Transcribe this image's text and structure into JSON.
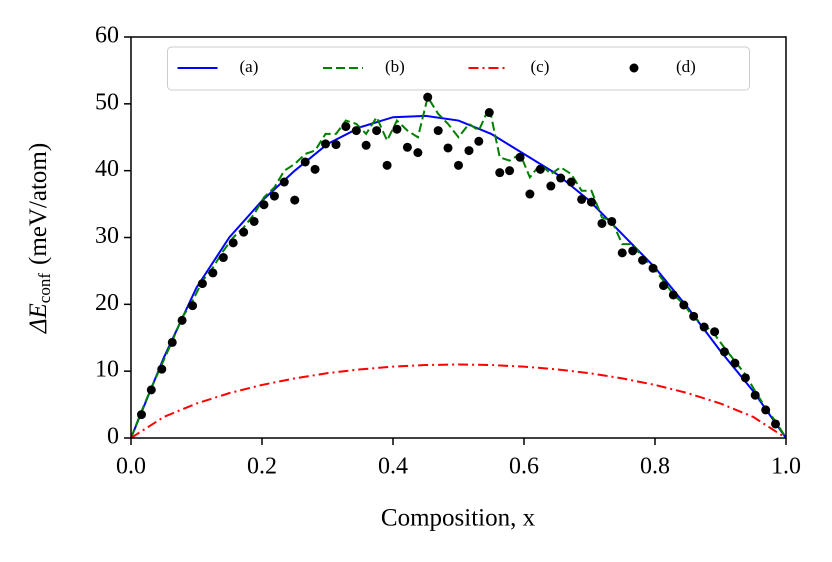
{
  "chart_data": {
    "type": "line",
    "xlabel": "Composition, x",
    "ylabel": [
      "ΔE",
      "conf",
      "(meV/atom)"
    ],
    "xlim": [
      0,
      1
    ],
    "ylim": [
      0,
      60
    ],
    "xticks": [
      {
        "value": 0,
        "label": "0.0"
      },
      0.2,
      0.4,
      0.6,
      0.8,
      {
        "value": 1,
        "label": "1.0"
      }
    ],
    "yticks": [
      0,
      10,
      20,
      30,
      40,
      50,
      60
    ],
    "legend": "upper center",
    "series": [
      {
        "name": "(a)",
        "color": "#0000ff",
        "style": "solid",
        "x": [
          0,
          0.05,
          0.1,
          0.15,
          0.2,
          0.25,
          0.3,
          0.35,
          0.4,
          0.45,
          0.5,
          0.55,
          0.6,
          0.65,
          0.7,
          0.75,
          0.8,
          0.85,
          0.9,
          0.95,
          1
        ],
        "values": [
          0,
          12,
          22.5,
          30,
          35.5,
          40,
          44,
          46.5,
          48,
          48.2,
          47.5,
          45.5,
          42.5,
          39.5,
          35.5,
          30.5,
          25.5,
          19.5,
          13,
          7,
          0
        ]
      },
      {
        "name": "(b)",
        "color": "#008000",
        "style": "dashed",
        "x": [
          0,
          0.016,
          0.031,
          0.047,
          0.063,
          0.078,
          0.094,
          0.109,
          0.125,
          0.141,
          0.156,
          0.172,
          0.188,
          0.203,
          0.219,
          0.234,
          0.25,
          0.266,
          0.281,
          0.297,
          0.313,
          0.328,
          0.344,
          0.359,
          0.375,
          0.391,
          0.406,
          0.422,
          0.438,
          0.453,
          0.469,
          0.484,
          0.5,
          0.516,
          0.531,
          0.547,
          0.563,
          0.578,
          0.594,
          0.609,
          0.625,
          0.641,
          0.656,
          0.672,
          0.688,
          0.703,
          0.719,
          0.734,
          0.75,
          0.766,
          0.781,
          0.797,
          0.813,
          0.828,
          0.844,
          0.859,
          0.875,
          0.891,
          0.906,
          0.922,
          0.938,
          0.953,
          0.969,
          0.984,
          1
        ],
        "values": [
          0,
          4,
          7.5,
          11,
          14.5,
          18,
          20.5,
          23.5,
          25.5,
          28,
          30,
          31.5,
          33.5,
          36,
          37.5,
          40,
          41,
          42.5,
          43,
          45.5,
          45.5,
          47.5,
          47,
          45.5,
          48,
          44.5,
          47.5,
          46,
          45,
          51,
          48.5,
          47,
          45,
          47,
          46,
          49.5,
          42,
          41.5,
          42.5,
          39,
          41,
          39.5,
          40.5,
          39.5,
          37,
          37,
          33,
          32.5,
          29,
          29,
          27,
          25.5,
          23.5,
          21.5,
          20,
          18,
          17,
          15.5,
          13.5,
          11.5,
          9.5,
          7,
          4.5,
          2.5,
          0
        ]
      },
      {
        "name": "(c)",
        "color": "#ff0000",
        "style": "dashdot",
        "x": [
          0,
          0.05,
          0.1,
          0.15,
          0.2,
          0.25,
          0.3,
          0.35,
          0.4,
          0.45,
          0.5,
          0.55,
          0.6,
          0.65,
          0.7,
          0.75,
          0.8,
          0.85,
          0.9,
          0.95,
          1
        ],
        "values": [
          0,
          3.15,
          5.16,
          6.71,
          7.94,
          8.92,
          9.7,
          10.27,
          10.68,
          10.92,
          11,
          10.92,
          10.68,
          10.27,
          9.7,
          8.92,
          7.94,
          6.71,
          5.16,
          3.15,
          0
        ]
      },
      {
        "name": "(d)",
        "color": "#000000",
        "style": "dots",
        "x": [
          0.016,
          0.031,
          0.047,
          0.063,
          0.078,
          0.094,
          0.109,
          0.125,
          0.141,
          0.156,
          0.172,
          0.188,
          0.203,
          0.219,
          0.234,
          0.25,
          0.266,
          0.281,
          0.297,
          0.313,
          0.328,
          0.344,
          0.359,
          0.375,
          0.391,
          0.406,
          0.422,
          0.438,
          0.453,
          0.469,
          0.484,
          0.5,
          0.516,
          0.531,
          0.547,
          0.563,
          0.578,
          0.594,
          0.609,
          0.625,
          0.641,
          0.656,
          0.672,
          0.688,
          0.703,
          0.719,
          0.734,
          0.75,
          0.766,
          0.781,
          0.797,
          0.813,
          0.828,
          0.844,
          0.859,
          0.875,
          0.891,
          0.906,
          0.922,
          0.938,
          0.953,
          0.969,
          0.984
        ],
        "values": [
          3.5,
          7.2,
          10.3,
          14.3,
          17.6,
          19.8,
          23.1,
          24.7,
          27,
          29.2,
          30.8,
          32.4,
          34.9,
          36.2,
          38.3,
          35.6,
          41.3,
          40.2,
          44,
          43.9,
          46.6,
          46,
          43.8,
          46,
          40.8,
          46.2,
          43.5,
          42.7,
          51,
          46,
          43.4,
          40.8,
          43,
          44.4,
          48.7,
          39.7,
          40,
          42,
          36.5,
          40.2,
          37.7,
          38.9,
          38.3,
          35.7,
          35.3,
          32.1,
          32.4,
          27.7,
          28,
          26.6,
          25.4,
          22.8,
          21.4,
          19.9,
          18.2,
          16.6,
          15.9,
          12.9,
          11.2,
          9,
          6.4,
          4.2,
          2.1
        ]
      }
    ]
  }
}
